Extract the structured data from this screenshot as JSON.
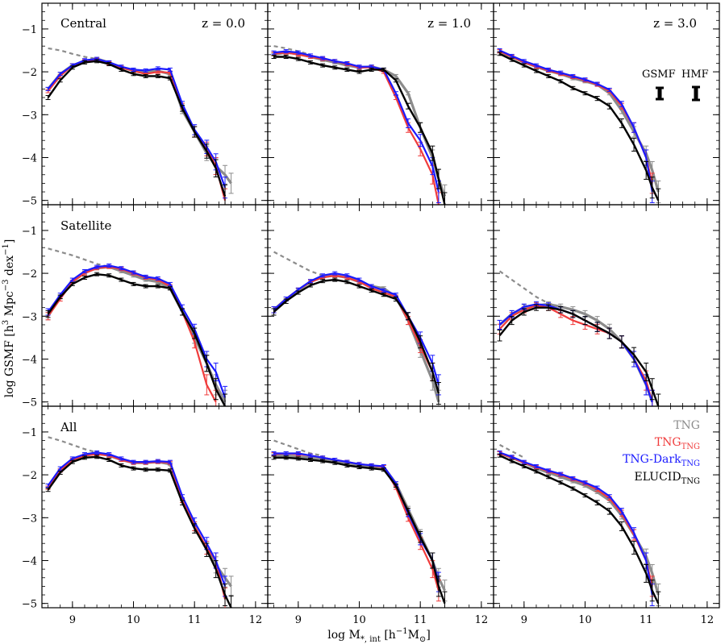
{
  "figure": {
    "xlabel_main": "log M",
    "xlabel_sub": "*, int",
    "xlabel_units": "[h",
    "xlabel_units_sup": "−1",
    "xlabel_units_end": "M",
    "xlabel_units_sub": "⊙",
    "xlabel_close": "]",
    "ylabel_main": "log GSMF [h",
    "ylabel_sup1": "3",
    "ylabel_mid": " Mpc",
    "ylabel_sup2": "−3",
    "ylabel_mid2": " dex",
    "ylabel_sup3": "−1",
    "ylabel_close": "]",
    "row_labels": [
      "Central",
      "Satellite",
      "All"
    ],
    "column_redshifts": [
      "z = 0.0",
      "z = 1.0",
      "z = 3.0"
    ],
    "errorbar_key": {
      "gsmf_label": "GSMF",
      "hmf_label": "HMF"
    },
    "xticks": [
      "9",
      "10",
      "11",
      "12"
    ],
    "yticks": [
      "−1",
      "−2",
      "−3",
      "−4",
      "−5"
    ]
  },
  "chart_data": {
    "type": "line",
    "grid": "3x3 panels",
    "xlim": [
      8.5,
      12.2
    ],
    "ylim": [
      -5.1,
      -0.4
    ],
    "series_legend": [
      {
        "name": "TNG",
        "base": "TNG",
        "sub": "",
        "color": "#8c8c8c"
      },
      {
        "name": "TNG_TNG",
        "base": "TNG",
        "sub": "TNG",
        "color": "#f03c3c"
      },
      {
        "name": "TNG-Dark_TNG",
        "base": "TNG-Dark",
        "sub": "TNG",
        "color": "#1a1aff"
      },
      {
        "name": "ELUCID_TNG",
        "base": "ELUCID",
        "sub": "TNG",
        "color": "#000000"
      }
    ],
    "dashed_extrapolation": {
      "name": "TNG (unresolved, dashed)",
      "color": "#8c8c8c"
    },
    "panels": [
      {
        "row": "Central",
        "z": "0.0",
        "x": [
          8.6,
          8.8,
          9.0,
          9.2,
          9.4,
          9.6,
          9.8,
          10.0,
          10.2,
          10.4,
          10.6,
          10.8,
          11.0,
          11.2,
          11.35,
          11.5,
          11.6
        ],
        "TNG": [
          -2.4,
          -2.05,
          -1.85,
          -1.75,
          -1.7,
          -1.78,
          -1.9,
          -1.97,
          -2.0,
          -1.98,
          -2.05,
          -2.9,
          -3.4,
          -3.9,
          -4.2,
          -4.4,
          -4.6
        ],
        "TNG_TNG": [
          -2.45,
          -2.1,
          -1.85,
          -1.75,
          -1.72,
          -1.8,
          -1.9,
          -1.98,
          -2.05,
          -2.0,
          -2.02,
          -2.8,
          -3.4,
          -3.8,
          -4.2,
          -5.0,
          null
        ],
        "TNG_Dark": [
          -2.4,
          -2.05,
          -1.85,
          -1.73,
          -1.7,
          -1.78,
          -1.88,
          -1.95,
          -1.97,
          -1.92,
          -1.95,
          -2.75,
          -3.35,
          -3.75,
          -4.1,
          -4.7,
          null
        ],
        "ELUCID": [
          -2.6,
          -2.2,
          -1.9,
          -1.78,
          -1.75,
          -1.82,
          -1.95,
          -2.05,
          -2.1,
          -2.1,
          -2.15,
          -2.85,
          -3.4,
          -3.85,
          -4.25,
          -4.9,
          null
        ],
        "dashed": {
          "x": [
            8.6,
            8.8,
            9.0,
            9.2,
            9.4
          ],
          "y": [
            -1.45,
            -1.5,
            -1.58,
            -1.65,
            -1.7
          ]
        }
      },
      {
        "row": "Central",
        "z": "1.0",
        "x": [
          8.6,
          8.8,
          9.0,
          9.2,
          9.4,
          9.6,
          9.8,
          10.0,
          10.2,
          10.4,
          10.6,
          10.8,
          11.0,
          11.2,
          11.3,
          11.4
        ],
        "TNG": [
          -1.6,
          -1.55,
          -1.58,
          -1.65,
          -1.72,
          -1.78,
          -1.85,
          -1.9,
          -1.88,
          -1.95,
          -2.1,
          -2.5,
          -3.3,
          -4.0,
          -4.5,
          -4.9
        ],
        "TNG_TNG": [
          -1.58,
          -1.55,
          -1.6,
          -1.65,
          -1.7,
          -1.75,
          -1.82,
          -1.9,
          -1.9,
          -2.0,
          -2.6,
          -3.3,
          -3.8,
          -4.4,
          -5.1,
          null
        ],
        "TNG_Dark": [
          -1.55,
          -1.52,
          -1.55,
          -1.62,
          -1.68,
          -1.75,
          -1.8,
          -1.88,
          -1.88,
          -1.95,
          -2.5,
          -3.2,
          -3.6,
          -4.2,
          -4.8,
          null
        ],
        "ELUCID": [
          -1.65,
          -1.65,
          -1.7,
          -1.78,
          -1.85,
          -1.9,
          -1.95,
          -2.0,
          -1.95,
          -1.95,
          -2.2,
          -2.8,
          -3.3,
          -3.9,
          -4.5,
          -5.1
        ],
        "dashed": {
          "x": [
            8.6,
            8.8,
            9.0,
            9.2
          ],
          "y": [
            -1.4,
            -1.45,
            -1.52,
            -1.6
          ]
        }
      },
      {
        "row": "Central",
        "z": "3.0",
        "x": [
          8.6,
          8.8,
          9.0,
          9.2,
          9.4,
          9.6,
          9.8,
          10.0,
          10.2,
          10.4,
          10.6,
          10.8,
          11.0,
          11.1,
          11.2
        ],
        "TNG": [
          -1.55,
          -1.65,
          -1.78,
          -1.88,
          -1.98,
          -2.05,
          -2.15,
          -2.22,
          -2.3,
          -2.5,
          -2.9,
          -3.4,
          -3.9,
          -4.3,
          -4.8
        ],
        "TNG_TNG": [
          -1.52,
          -1.65,
          -1.78,
          -1.88,
          -1.97,
          -2.05,
          -2.12,
          -2.2,
          -2.3,
          -2.45,
          -2.8,
          -3.3,
          -4.0,
          -4.6,
          null
        ],
        "TNG_Dark": [
          -1.5,
          -1.63,
          -1.75,
          -1.85,
          -1.95,
          -2.02,
          -2.1,
          -2.18,
          -2.28,
          -2.42,
          -2.75,
          -3.3,
          -4.0,
          -4.8,
          null
        ],
        "ELUCID": [
          -1.58,
          -1.72,
          -1.85,
          -1.98,
          -2.1,
          -2.22,
          -2.38,
          -2.5,
          -2.62,
          -2.8,
          -3.2,
          -3.7,
          -4.3,
          -4.7,
          -5.0
        ],
        "dashed": {
          "x": [],
          "y": []
        }
      },
      {
        "row": "Satellite",
        "z": "0.0",
        "x": [
          8.6,
          8.8,
          9.0,
          9.2,
          9.4,
          9.6,
          9.8,
          10.0,
          10.2,
          10.4,
          10.6,
          10.8,
          11.0,
          11.2,
          11.35,
          11.5
        ],
        "TNG": [
          -3.0,
          -2.55,
          -2.2,
          -1.98,
          -1.88,
          -1.85,
          -1.95,
          -2.05,
          -2.15,
          -2.2,
          -2.35,
          -2.9,
          -3.5,
          -4.1,
          -4.6,
          -5.0
        ],
        "TNG_TNG": [
          -3.0,
          -2.6,
          -2.2,
          -2.0,
          -1.88,
          -1.85,
          -1.9,
          -2.0,
          -2.1,
          -2.15,
          -2.3,
          -2.9,
          -3.6,
          -4.6,
          -5.0,
          null
        ],
        "TNG_Dark": [
          -2.9,
          -2.5,
          -2.15,
          -1.95,
          -1.85,
          -1.82,
          -1.88,
          -1.98,
          -2.08,
          -2.12,
          -2.25,
          -2.8,
          -3.3,
          -4.0,
          -4.3,
          -4.9
        ],
        "ELUCID": [
          -2.95,
          -2.55,
          -2.25,
          -2.1,
          -2.02,
          -2.05,
          -2.15,
          -2.25,
          -2.3,
          -2.3,
          -2.35,
          -2.9,
          -3.4,
          -4.1,
          -4.7,
          -5.1
        ],
        "dashed": {
          "x": [
            8.6,
            8.8,
            9.0,
            9.2,
            9.4,
            9.6
          ],
          "y": [
            -1.42,
            -1.5,
            -1.58,
            -1.68,
            -1.78,
            -1.85
          ]
        }
      },
      {
        "row": "Satellite",
        "z": "1.0",
        "x": [
          8.6,
          8.8,
          9.0,
          9.2,
          9.4,
          9.6,
          9.8,
          10.0,
          10.2,
          10.4,
          10.6,
          10.8,
          11.0,
          11.2,
          11.3
        ],
        "TNG": [
          -2.85,
          -2.6,
          -2.4,
          -2.2,
          -2.08,
          -2.05,
          -2.1,
          -2.2,
          -2.3,
          -2.35,
          -2.55,
          -3.1,
          -3.8,
          -4.5,
          -5.0
        ],
        "TNG_TNG": [
          -2.85,
          -2.6,
          -2.38,
          -2.2,
          -2.1,
          -2.05,
          -2.1,
          -2.2,
          -2.35,
          -2.45,
          -2.55,
          -3.1,
          -3.7,
          -4.3,
          null
        ],
        "TNG_Dark": [
          -2.85,
          -2.6,
          -2.38,
          -2.18,
          -2.05,
          -2.0,
          -2.05,
          -2.15,
          -2.3,
          -2.4,
          -2.5,
          -3.0,
          -3.5,
          -4.1,
          -4.6
        ],
        "ELUCID": [
          -2.9,
          -2.65,
          -2.45,
          -2.28,
          -2.18,
          -2.15,
          -2.2,
          -2.3,
          -2.4,
          -2.5,
          -2.6,
          -3.0,
          -3.6,
          -4.3,
          -4.8
        ],
        "dashed": {
          "x": [
            8.6,
            8.8,
            9.0,
            9.2,
            9.4
          ],
          "y": [
            -1.5,
            -1.65,
            -1.8,
            -1.95,
            -2.05
          ]
        }
      },
      {
        "row": "Satellite",
        "z": "3.0",
        "x": [
          8.6,
          8.8,
          9.0,
          9.2,
          9.4,
          9.6,
          9.8,
          10.0,
          10.2,
          10.4,
          10.6,
          10.8,
          11.0,
          11.1,
          11.2
        ],
        "TNG": [
          -3.2,
          -2.95,
          -2.8,
          -2.75,
          -2.72,
          -2.78,
          -2.85,
          -2.95,
          -3.1,
          -3.3,
          -3.6,
          -4.0,
          -4.6,
          -5.0,
          null
        ],
        "TNG_TNG": [
          -3.3,
          -3.0,
          -2.85,
          -2.75,
          -2.8,
          -2.95,
          -3.1,
          -3.2,
          -3.3,
          -3.4,
          -3.6,
          -4.0,
          -4.5,
          -5.0,
          null
        ],
        "TNG_Dark": [
          -3.2,
          -2.95,
          -2.78,
          -2.72,
          -2.75,
          -2.85,
          -2.95,
          -3.1,
          -3.25,
          -3.4,
          -3.6,
          -4.0,
          -4.6,
          -5.0,
          null
        ],
        "ELUCID": [
          -3.45,
          -3.1,
          -2.9,
          -2.8,
          -2.8,
          -2.85,
          -2.95,
          -3.1,
          -3.25,
          -3.4,
          -3.6,
          -3.9,
          -4.3,
          -4.7,
          -5.1
        ],
        "dashed": {
          "x": [
            8.6,
            8.8,
            9.0,
            9.2,
            9.4,
            9.6
          ],
          "y": [
            -1.95,
            -2.15,
            -2.35,
            -2.55,
            -2.7,
            -2.78
          ]
        }
      },
      {
        "row": "All",
        "z": "0.0",
        "x": [
          8.6,
          8.8,
          9.0,
          9.2,
          9.4,
          9.6,
          9.8,
          10.0,
          10.2,
          10.4,
          10.6,
          10.8,
          11.0,
          11.2,
          11.35,
          11.5,
          11.6
        ],
        "TNG": [
          -2.3,
          -1.9,
          -1.65,
          -1.55,
          -1.5,
          -1.55,
          -1.65,
          -1.72,
          -1.72,
          -1.7,
          -1.75,
          -2.6,
          -3.2,
          -3.75,
          -4.1,
          -4.4,
          -4.6
        ],
        "TNG_TNG": [
          -2.3,
          -1.9,
          -1.65,
          -1.55,
          -1.52,
          -1.55,
          -1.65,
          -1.72,
          -1.72,
          -1.7,
          -1.72,
          -2.6,
          -3.2,
          -3.7,
          -4.0,
          -4.9,
          null
        ],
        "TNG_Dark": [
          -2.25,
          -1.85,
          -1.62,
          -1.52,
          -1.48,
          -1.52,
          -1.62,
          -1.7,
          -1.7,
          -1.68,
          -1.7,
          -2.5,
          -3.1,
          -3.6,
          -4.0,
          -4.6,
          null
        ],
        "ELUCID": [
          -2.35,
          -1.95,
          -1.7,
          -1.6,
          -1.58,
          -1.65,
          -1.78,
          -1.85,
          -1.88,
          -1.88,
          -1.9,
          -2.65,
          -3.25,
          -3.75,
          -4.2,
          -4.8,
          -5.1
        ],
        "dashed": {
          "x": [
            8.6,
            8.8,
            9.0,
            9.2,
            9.4
          ],
          "y": [
            -1.12,
            -1.2,
            -1.3,
            -1.4,
            -1.48
          ]
        }
      },
      {
        "row": "All",
        "z": "1.0",
        "x": [
          8.6,
          8.8,
          9.0,
          9.2,
          9.4,
          9.6,
          9.8,
          10.0,
          10.2,
          10.4,
          10.6,
          10.8,
          11.0,
          11.2,
          11.3,
          11.4
        ],
        "TNG": [
          -1.55,
          -1.55,
          -1.58,
          -1.6,
          -1.62,
          -1.68,
          -1.72,
          -1.78,
          -1.8,
          -1.82,
          -2.2,
          -2.8,
          -3.4,
          -4.0,
          -4.4,
          -4.7
        ],
        "TNG_TNG": [
          -1.52,
          -1.5,
          -1.52,
          -1.55,
          -1.6,
          -1.65,
          -1.7,
          -1.75,
          -1.78,
          -1.82,
          -2.3,
          -3.0,
          -3.6,
          -4.2,
          -4.7,
          null
        ],
        "TNG_Dark": [
          -1.5,
          -1.5,
          -1.5,
          -1.55,
          -1.6,
          -1.65,
          -1.7,
          -1.75,
          -1.78,
          -1.8,
          -2.2,
          -2.9,
          -3.5,
          -4.0,
          -4.5,
          null
        ],
        "ELUCID": [
          -1.6,
          -1.6,
          -1.62,
          -1.65,
          -1.68,
          -1.72,
          -1.78,
          -1.82,
          -1.85,
          -1.88,
          -2.25,
          -2.85,
          -3.45,
          -4.0,
          -4.6,
          -5.0
        ],
        "dashed": {
          "x": [
            8.6,
            8.8,
            9.0,
            9.2,
            9.4
          ],
          "y": [
            -1.2,
            -1.3,
            -1.4,
            -1.5,
            -1.55
          ]
        }
      },
      {
        "row": "All",
        "z": "3.0",
        "x": [
          8.6,
          8.8,
          9.0,
          9.2,
          9.4,
          9.6,
          9.8,
          10.0,
          10.2,
          10.4,
          10.6,
          10.8,
          11.0,
          11.1,
          11.2
        ],
        "TNG": [
          -1.5,
          -1.6,
          -1.72,
          -1.85,
          -1.95,
          -2.05,
          -2.15,
          -2.25,
          -2.4,
          -2.6,
          -2.95,
          -3.4,
          -3.9,
          -4.3,
          -4.8
        ],
        "TNG_TNG": [
          -1.5,
          -1.6,
          -1.72,
          -1.82,
          -1.92,
          -2.0,
          -2.1,
          -2.2,
          -2.35,
          -2.55,
          -2.9,
          -3.4,
          -4.0,
          -4.6,
          null
        ],
        "TNG_Dark": [
          -1.48,
          -1.58,
          -1.7,
          -1.8,
          -1.9,
          -1.98,
          -2.08,
          -2.18,
          -2.3,
          -2.5,
          -2.85,
          -3.35,
          -4.0,
          -4.8,
          null
        ],
        "ELUCID": [
          -1.55,
          -1.68,
          -1.8,
          -1.92,
          -2.05,
          -2.18,
          -2.32,
          -2.48,
          -2.65,
          -2.85,
          -3.2,
          -3.7,
          -4.3,
          -4.7,
          -5.0
        ],
        "dashed": {
          "x": [
            8.6,
            8.8,
            9.0
          ],
          "y": [
            -1.3,
            -1.45,
            -1.6
          ]
        }
      }
    ]
  }
}
